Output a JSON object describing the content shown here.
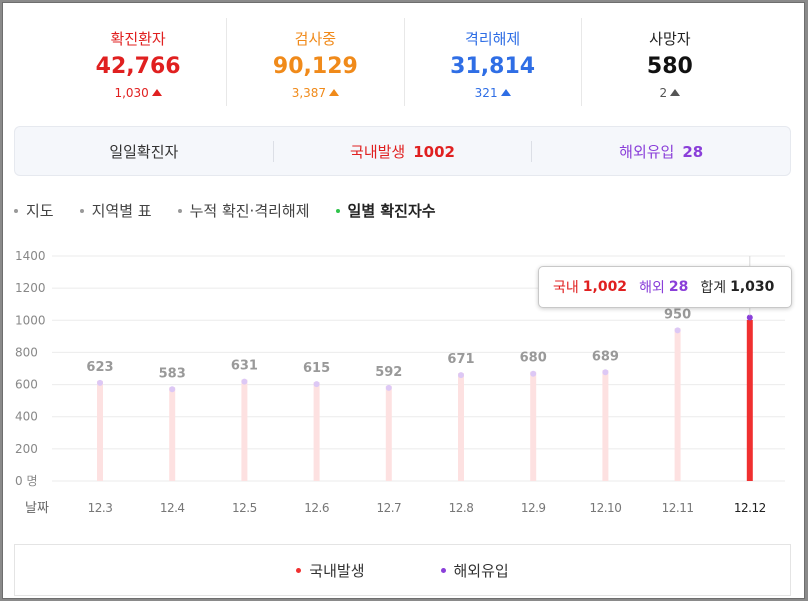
{
  "stats": [
    {
      "label": "확진환자",
      "value": "42,766",
      "change": "1,030",
      "color": "#e02020"
    },
    {
      "label": "검사중",
      "value": "90,129",
      "change": "3,387",
      "color": "#f08a1a"
    },
    {
      "label": "격리해제",
      "value": "31,814",
      "change": "321",
      "color": "#2f6ee5"
    },
    {
      "label": "사망자",
      "value": "580",
      "change": "2",
      "color": "#111111",
      "label_color": "#222222",
      "change_color": "#555555"
    }
  ],
  "daily": {
    "title": "일일확진자",
    "domestic_label": "국내발생",
    "domestic_value": "1002",
    "overseas_label": "해외유입",
    "overseas_value": "28"
  },
  "tabs": [
    "지도",
    "지역별 표",
    "누적 확진·격리해제",
    "일별 확진자수"
  ],
  "active_tab": 3,
  "tooltip": {
    "domestic_label": "국내",
    "domestic_value": "1,002",
    "overseas_label": "해외",
    "overseas_value": "28",
    "total_label": "합계",
    "total_value": "1,030"
  },
  "legend": {
    "domestic": "국내발생",
    "overseas": "해외유입"
  },
  "colors": {
    "domestic": "#f03030",
    "domestic_faded": "#fde1e1",
    "overseas": "#8a3fd9",
    "overseas_faded": "#ddc8f5",
    "grid": "#ebebeb"
  },
  "chart_data": {
    "type": "bar",
    "categories": [
      "12.3",
      "12.4",
      "12.5",
      "12.6",
      "12.7",
      "12.8",
      "12.9",
      "12.10",
      "12.11",
      "12.12"
    ],
    "series": [
      {
        "name": "국내발생",
        "values": [
          null,
          null,
          null,
          null,
          null,
          null,
          null,
          null,
          null,
          1002
        ]
      },
      {
        "name": "해외유입",
        "values": [
          null,
          null,
          null,
          null,
          null,
          null,
          null,
          null,
          null,
          28
        ]
      }
    ],
    "totals": [
      623,
      583,
      631,
      615,
      592,
      671,
      680,
      689,
      950,
      1030
    ],
    "data_labels": [
      "623",
      "583",
      "631",
      "615",
      "592",
      "671",
      "680",
      "689",
      "950",
      ""
    ],
    "highlight_index": 9,
    "ylim": [
      0,
      1400
    ],
    "yticks": [
      "0 명",
      "200",
      "400",
      "600",
      "800",
      "1000",
      "1200",
      "1400"
    ],
    "xlabel": "날짜",
    "ylabel": ""
  }
}
